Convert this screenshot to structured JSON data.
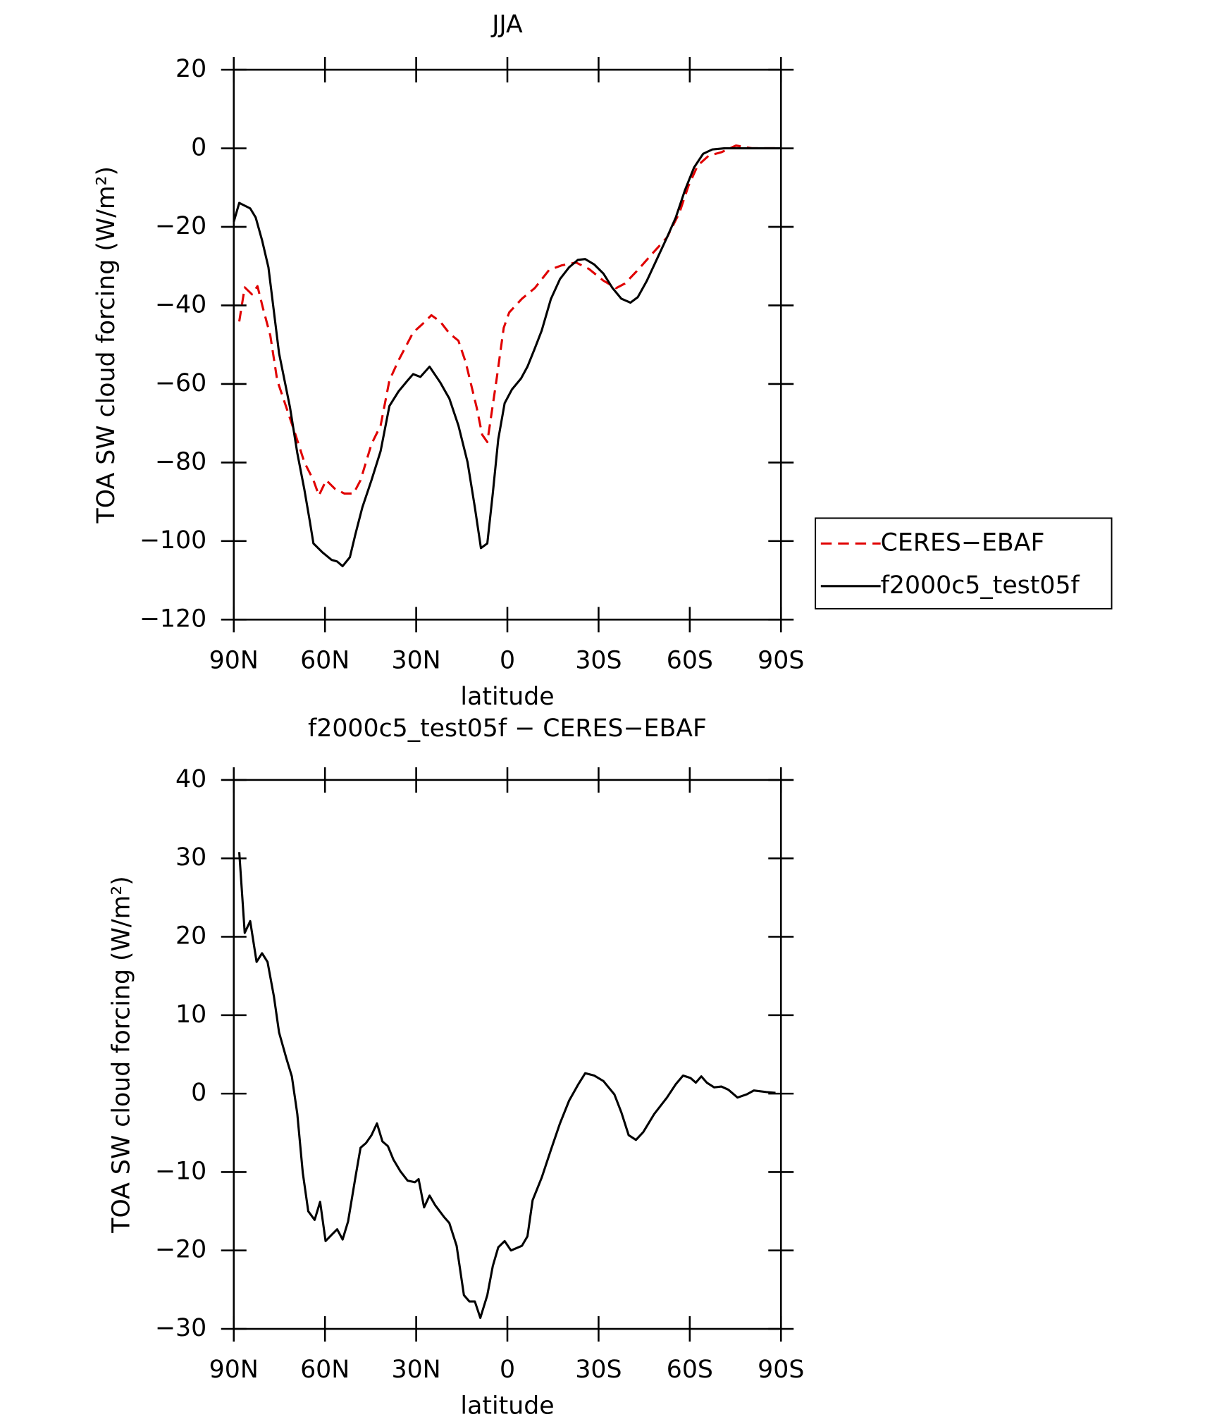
{
  "chart_data": [
    {
      "type": "line",
      "title": "JJA",
      "xlabel": "latitude",
      "ylabel": "TOA SW cloud forcing (W/m²)",
      "xlim": [
        90,
        -90
      ],
      "ylim": [
        -120,
        20
      ],
      "xticks": [
        {
          "value": 90,
          "label": "90N"
        },
        {
          "value": 60,
          "label": "60N"
        },
        {
          "value": 30,
          "label": "30N"
        },
        0,
        {
          "value": -30,
          "label": "30S"
        },
        {
          "value": -60,
          "label": "60S"
        },
        {
          "value": -90,
          "label": "90S"
        }
      ],
      "yticks": [
        20,
        0,
        {
          "value": -20,
          "label": "−20"
        },
        {
          "value": -40,
          "label": "−40"
        },
        {
          "value": -60,
          "label": "−60"
        },
        {
          "value": -80,
          "label": "−80"
        },
        {
          "value": -100,
          "label": "−100"
        },
        {
          "value": -120,
          "label": "−120"
        }
      ],
      "legend": "right",
      "series": [
        {
          "name": "CERES−EBAF",
          "color": "#e00000",
          "dashed": true,
          "x": [
            88.2,
            86.4,
            84,
            82.2,
            80.4,
            78,
            75.7,
            72.7,
            69.7,
            66.8,
            63.8,
            62,
            59.6,
            56.6,
            53.6,
            50.6,
            48.3,
            44.7,
            41.7,
            38.8,
            35.8,
            31,
            28,
            25,
            22.1,
            19.1,
            16.1,
            13.7,
            10.1,
            8.3,
            6.6,
            3.6,
            1.2,
            -0.6,
            -4.8,
            -9,
            -13.7,
            -17.9,
            -22.6,
            -26.8,
            -31.6,
            -35.8,
            -38.7,
            -42.9,
            -47.7,
            -52.5,
            -56.6,
            -59.6,
            -62.6,
            -66.2,
            -70.4,
            -75.2,
            -80.6,
            -90
          ],
          "values": [
            -44.1,
            -35.4,
            -37.2,
            -35.1,
            -40.7,
            -47.6,
            -59.1,
            -66,
            -72.9,
            -79.9,
            -84.5,
            -88.4,
            -84.5,
            -86.8,
            -87.9,
            -87.9,
            -84.5,
            -75.3,
            -70.6,
            -59.1,
            -54,
            -46.9,
            -44.8,
            -42.5,
            -44.1,
            -47.1,
            -49,
            -54.5,
            -66,
            -72.9,
            -74.8,
            -59.1,
            -45.7,
            -41.8,
            -38.3,
            -35.6,
            -31,
            -29.8,
            -29.1,
            -30.7,
            -33.7,
            -35.6,
            -34.4,
            -31,
            -26.8,
            -22.7,
            -16.4,
            -9.5,
            -4.4,
            -1.9,
            -1,
            0.7,
            0,
            0
          ]
        },
        {
          "name": "f2000c5_test05f",
          "color": "#000000",
          "dashed": false,
          "x": [
            90,
            88.2,
            84.6,
            82.8,
            80.7,
            78.6,
            75.1,
            71.5,
            69.1,
            66.8,
            65,
            63.8,
            60.8,
            57.8,
            56,
            54.2,
            51.8,
            50,
            47.7,
            44.7,
            41.7,
            38.8,
            35.8,
            32.8,
            31,
            28.6,
            25.6,
            22.1,
            19.1,
            16.1,
            13.1,
            10.7,
            8.7,
            6.6,
            4.8,
            3,
            0.9,
            -1.5,
            -4.5,
            -6.6,
            -9,
            -11.3,
            -14.3,
            -17.3,
            -20.3,
            -23.2,
            -25.6,
            -28.6,
            -31.6,
            -34.6,
            -37.5,
            -40.5,
            -42.9,
            -45.9,
            -48.9,
            -52.5,
            -55.4,
            -58.4,
            -61.4,
            -64.4,
            -67.4,
            -71.5,
            -90
          ],
          "values": [
            -18.7,
            -13.9,
            -15.3,
            -17.6,
            -23.4,
            -30.3,
            -52.2,
            -66,
            -77.6,
            -86.8,
            -94.9,
            -100.6,
            -102.9,
            -104.8,
            -105.2,
            -106.4,
            -104.1,
            -98.3,
            -91.4,
            -84.5,
            -77.1,
            -65.6,
            -61.9,
            -59.1,
            -57.5,
            -58.2,
            -55.6,
            -59.6,
            -63.7,
            -70.6,
            -79.9,
            -91.4,
            -101.8,
            -100.6,
            -87.9,
            -74.1,
            -64.9,
            -61.4,
            -58.6,
            -55.6,
            -51,
            -46.4,
            -38.4,
            -33.3,
            -30.3,
            -28.4,
            -28.2,
            -29.6,
            -31.9,
            -35.6,
            -38.3,
            -39.3,
            -37.9,
            -33.7,
            -28.7,
            -22.7,
            -17.6,
            -10.7,
            -4.9,
            -1.4,
            -0.3,
            0,
            0
          ]
        }
      ]
    },
    {
      "type": "line",
      "title": "f2000c5_test05f − CERES−EBAF",
      "xlabel": "latitude",
      "ylabel": "TOA SW cloud forcing (W/m²)",
      "xlim": [
        90,
        -90
      ],
      "ylim": [
        -30,
        40
      ],
      "xticks": [
        {
          "value": 90,
          "label": "90N"
        },
        {
          "value": 60,
          "label": "60N"
        },
        {
          "value": 30,
          "label": "30N"
        },
        0,
        {
          "value": -30,
          "label": "30S"
        },
        {
          "value": -60,
          "label": "60S"
        },
        {
          "value": -90,
          "label": "90S"
        }
      ],
      "yticks": [
        40,
        30,
        20,
        10,
        0,
        {
          "value": -10,
          "label": "−10"
        },
        {
          "value": -20,
          "label": "−20"
        },
        {
          "value": -30,
          "label": "−30"
        }
      ],
      "series": [
        {
          "color": "#000000",
          "dashed": false,
          "x": [
            88.2,
            86.4,
            84.6,
            82.5,
            80.7,
            78.9,
            76.8,
            75.1,
            72.7,
            70.9,
            69.1,
            67.3,
            65.5,
            63.4,
            61.6,
            59.8,
            57.8,
            56,
            54.2,
            52.4,
            50,
            48.3,
            46.5,
            44.7,
            42.9,
            41.1,
            39.3,
            37.5,
            35.2,
            32.8,
            30.4,
            29.2,
            27.4,
            25.6,
            23.8,
            20.9,
            19.1,
            16.7,
            14.3,
            12.5,
            10.7,
            8.9,
            6.6,
            4.8,
            3,
            0.9,
            -1.2,
            -4.8,
            -6.6,
            -8.3,
            -11.3,
            -14.3,
            -17.3,
            -20.3,
            -23.2,
            -25.6,
            -28.6,
            -31.6,
            -35.2,
            -37.5,
            -39.9,
            -42.3,
            -44.7,
            -48.3,
            -52.5,
            -55.4,
            -57.8,
            -60.2,
            -62,
            -63.8,
            -65.6,
            -68,
            -70.4,
            -72.7,
            -75.7,
            -78.7,
            -81.1,
            -85.2,
            -88.2
          ],
          "values": [
            30.8,
            20.5,
            22,
            16.8,
            17.9,
            16.8,
            12.4,
            7.8,
            4.5,
            2.2,
            -2.6,
            -10.1,
            -15,
            -16.1,
            -13.8,
            -18.8,
            -18,
            -17.3,
            -18.6,
            -16.3,
            -10.7,
            -6.9,
            -6.3,
            -5.3,
            -3.8,
            -6.1,
            -6.7,
            -8.4,
            -9.9,
            -11.1,
            -11.3,
            -10.9,
            -14.5,
            -13,
            -14.2,
            -15.7,
            -16.5,
            -19.4,
            -25.7,
            -26.5,
            -26.5,
            -28.6,
            -25.7,
            -22,
            -19.6,
            -18.8,
            -20,
            -19.4,
            -18.2,
            -13.6,
            -10.7,
            -7.2,
            -3.8,
            -0.9,
            1.1,
            2.6,
            2.3,
            1.6,
            -0.1,
            -2.4,
            -5.3,
            -5.9,
            -4.9,
            -2.6,
            -0.5,
            1.2,
            2.3,
            2,
            1.4,
            2.2,
            1.4,
            0.8,
            0.9,
            0.5,
            -0.5,
            -0.1,
            0.4,
            0.2,
            0.1
          ]
        }
      ]
    }
  ]
}
